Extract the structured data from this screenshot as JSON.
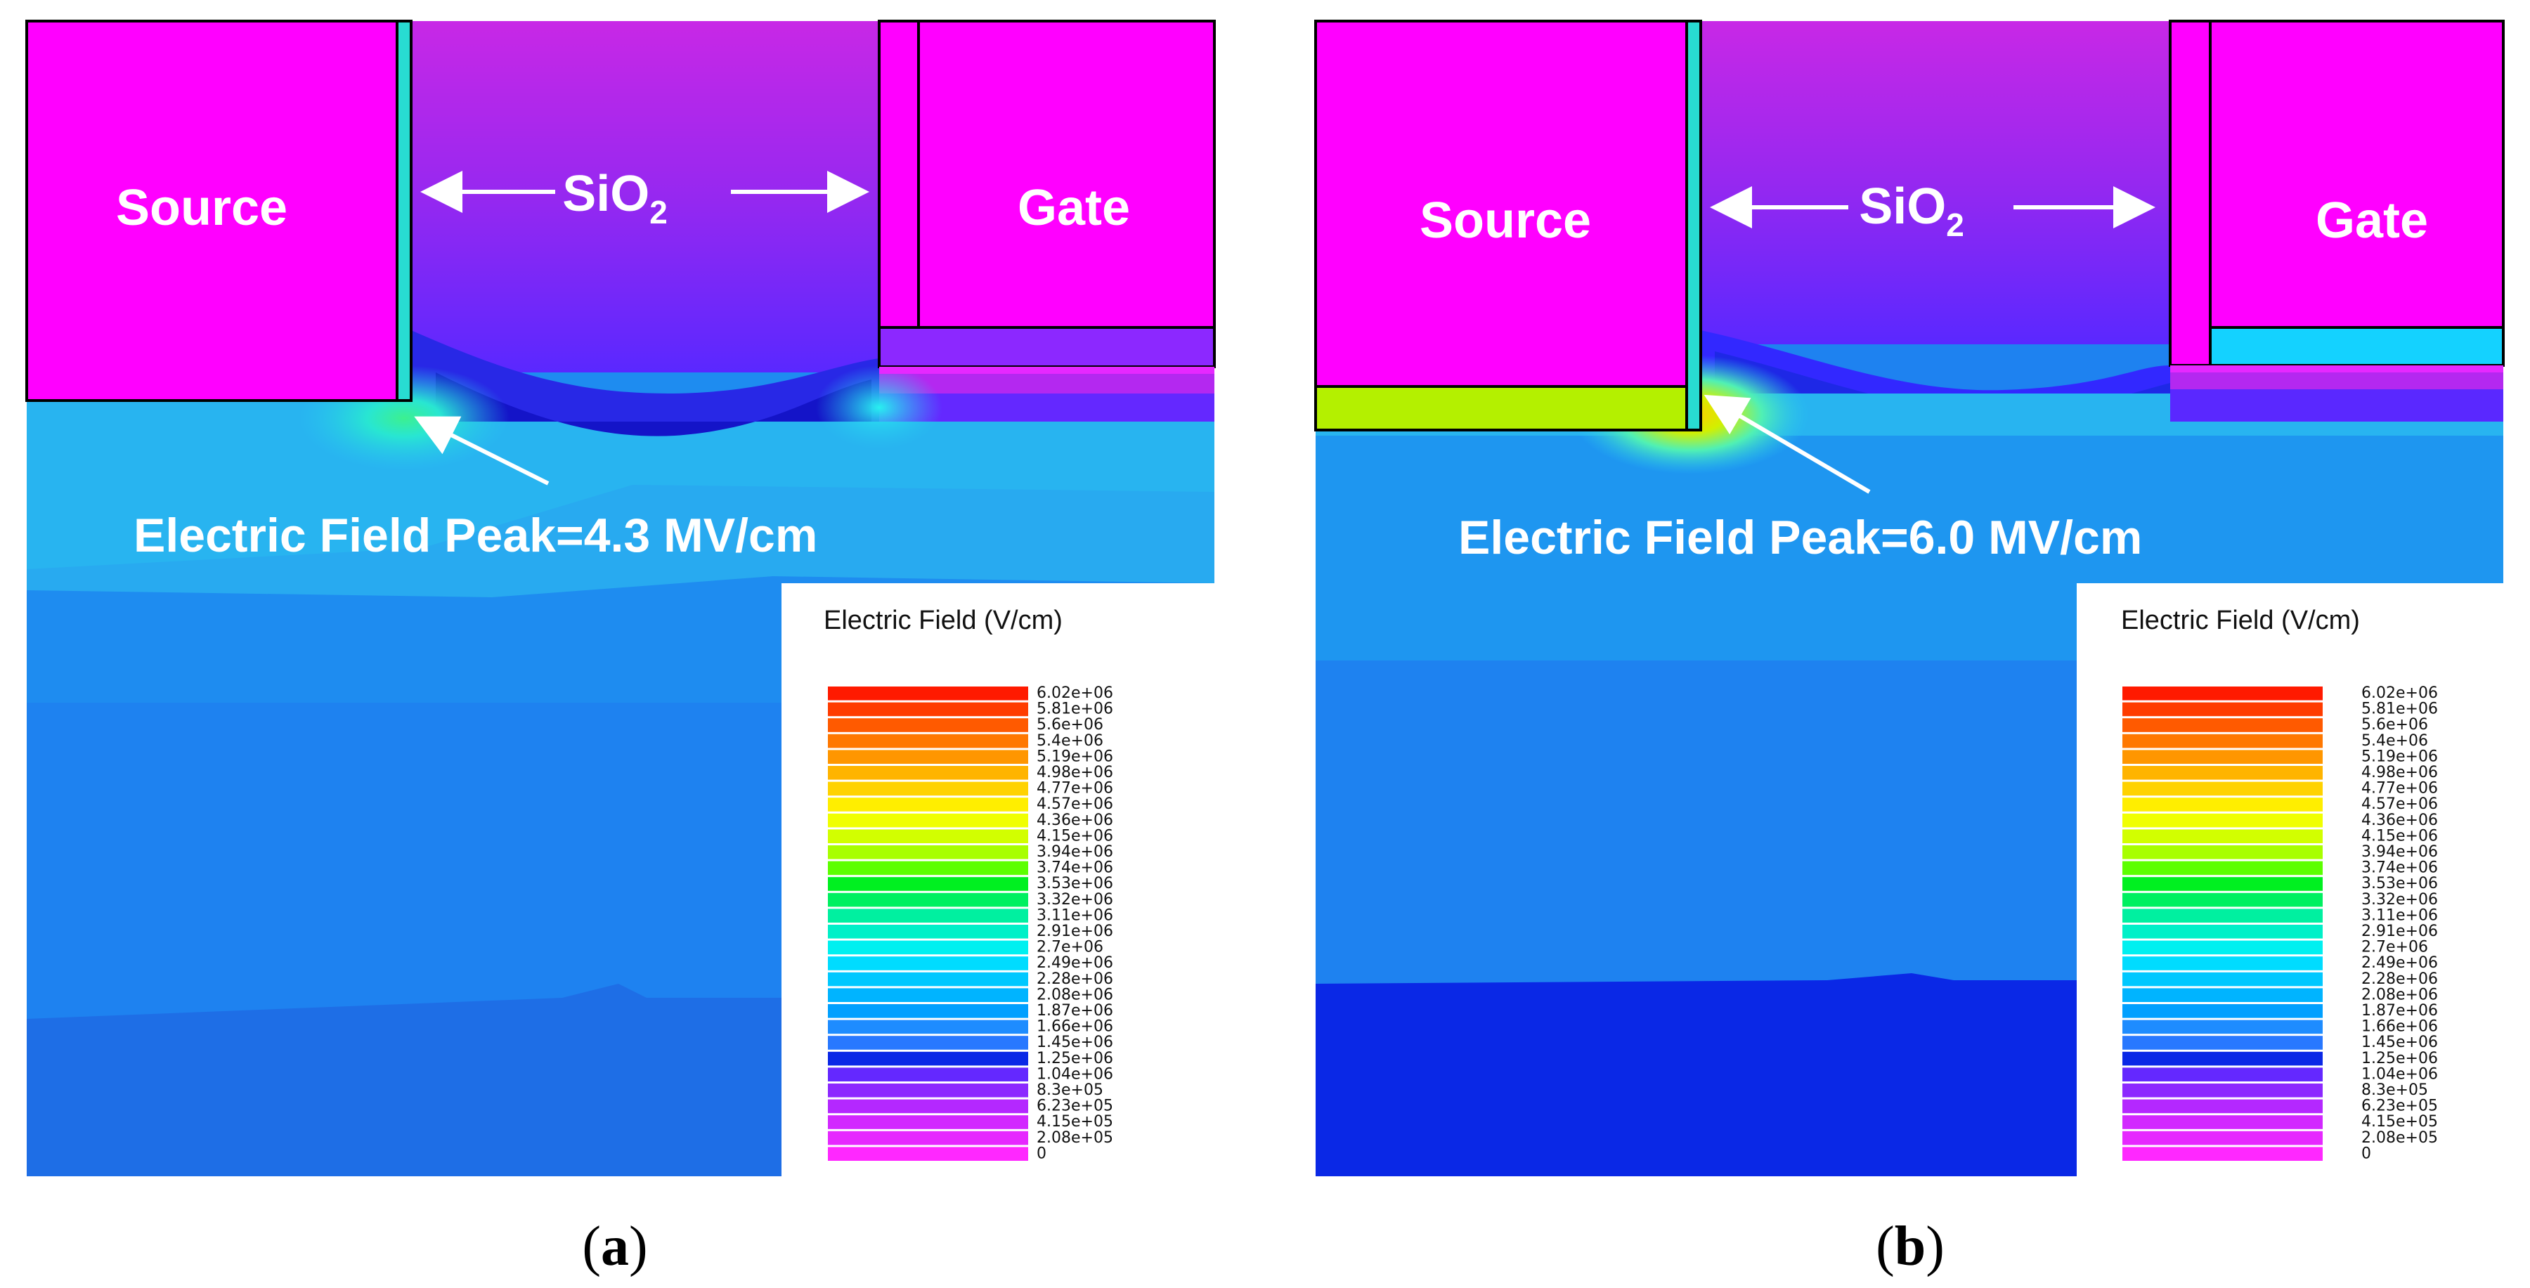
{
  "panels": [
    {
      "id": "a",
      "caption_open": "(",
      "caption_letter": "a",
      "caption_close": ")",
      "source_label": "Source",
      "gate_label": "Gate",
      "oxide_label": "SiO",
      "oxide_subscript": "2",
      "peak_label": "Electric Field Peak=4.3 MV/cm",
      "peak_value_mv_per_cm": 4.3
    },
    {
      "id": "b",
      "caption_open": "(",
      "caption_letter": "b",
      "caption_close": ")",
      "source_label": "Source",
      "gate_label": "Gate",
      "oxide_label": "SiO",
      "oxide_subscript": "2",
      "peak_label": "Electric Field Peak=6.0 MV/cm",
      "peak_value_mv_per_cm": 6.0
    }
  ],
  "legend": {
    "title": "Electric Field (V/cm)",
    "ticks": [
      "6.02e+06",
      "5.81e+06",
      "5.6e+06",
      "5.4e+06",
      "5.19e+06",
      "4.98e+06",
      "4.77e+06",
      "4.57e+06",
      "4.36e+06",
      "4.15e+06",
      "3.94e+06",
      "3.74e+06",
      "3.53e+06",
      "3.32e+06",
      "3.11e+06",
      "2.91e+06",
      "2.7e+06",
      "2.49e+06",
      "2.28e+06",
      "2.08e+06",
      "1.87e+06",
      "1.66e+06",
      "1.45e+06",
      "1.25e+06",
      "1.04e+06",
      "8.3e+05",
      "6.23e+05",
      "4.15e+05",
      "2.08e+05",
      "0"
    ],
    "colors": [
      "#ff1a00",
      "#ff3c00",
      "#ff5a00",
      "#ff7800",
      "#ff9600",
      "#ffb400",
      "#ffd200",
      "#ffee00",
      "#f0ff00",
      "#d2ff00",
      "#a8ff00",
      "#5cff00",
      "#00f020",
      "#00f060",
      "#00f0a0",
      "#00f0c8",
      "#00f0f0",
      "#00dcff",
      "#00c8ff",
      "#00b4ff",
      "#00a0ff",
      "#1e8cff",
      "#2878ff",
      "#0a28e6",
      "#6428ff",
      "#8c28ff",
      "#b428ff",
      "#d228ff",
      "#e628ff",
      "#ff28ff"
    ]
  },
  "colors": {
    "metal": "#ff00ff",
    "oxide_top": "#b428e6",
    "oxide_mid": "#7828ff",
    "oxide_deep": "#2828f0",
    "field_light": "#28b4f0",
    "field_mid": "#1e96f0",
    "field_deep": "#1e82f0",
    "field_floor_a": "#1e6ee6",
    "field_floor_b": "#0a28e6",
    "cyan_strip": "#14d2ff",
    "yellow_strip": "#b4f000"
  }
}
